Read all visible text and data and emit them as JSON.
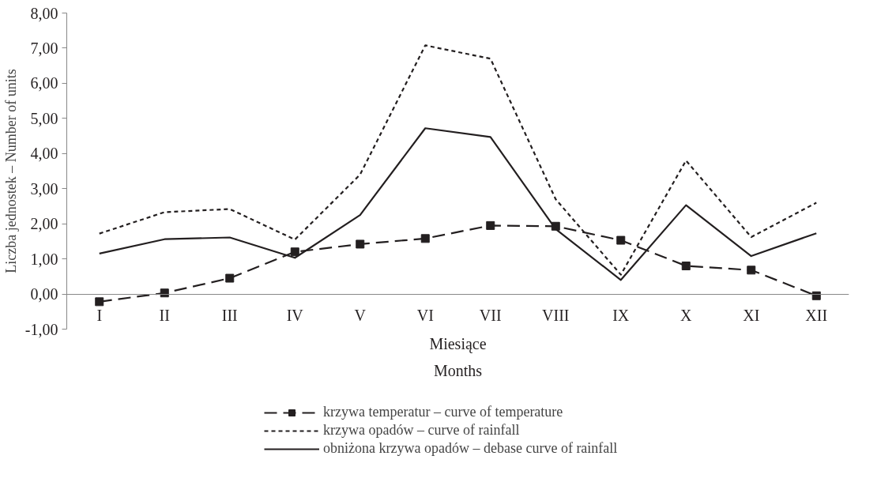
{
  "chart_data": {
    "type": "line",
    "ylabel": "Liczba jednostek – Number of units",
    "xlabel": "Miesiące\nMonths",
    "categories": [
      "I",
      "II",
      "III",
      "IV",
      "V",
      "VI",
      "VII",
      "VIII",
      "IX",
      "X",
      "XI",
      "XII"
    ],
    "ylim": [
      -1,
      8
    ],
    "yticks": [
      {
        "value": -1,
        "label": "-1,00"
      },
      {
        "value": 0,
        "label": "0,00"
      },
      {
        "value": 1,
        "label": "1,00"
      },
      {
        "value": 2,
        "label": "2,00"
      },
      {
        "value": 3,
        "label": "3,00"
      },
      {
        "value": 4,
        "label": "4,00"
      },
      {
        "value": 5,
        "label": "5,00"
      },
      {
        "value": 6,
        "label": "6,00"
      },
      {
        "value": 7,
        "label": "7,00"
      },
      {
        "value": 8,
        "label": "8,00"
      }
    ],
    "grid": false,
    "legend": "bottom",
    "series": [
      {
        "name": "krzywa temperatur – curve of temperature",
        "color": "#231f20",
        "marker": "square",
        "line_style": "longdash",
        "values": [
          -0.22,
          0.03,
          0.45,
          1.2,
          1.42,
          1.58,
          1.95,
          1.93,
          1.53,
          0.8,
          0.68,
          -0.05
        ]
      },
      {
        "name": "krzywa opadów – curve of rainfall",
        "color": "#231f20",
        "marker": "none",
        "line_style": "dashed",
        "values": [
          1.72,
          2.33,
          2.42,
          1.55,
          3.4,
          7.08,
          6.7,
          2.7,
          0.55,
          3.8,
          1.62,
          2.6
        ]
      },
      {
        "name": "obniżona krzywa opadów – debase curve of rainfall",
        "color": "#231f20",
        "marker": "none",
        "line_style": "solid",
        "values": [
          1.15,
          1.56,
          1.61,
          1.03,
          2.25,
          4.72,
          4.47,
          1.85,
          0.4,
          2.53,
          1.08,
          1.73
        ]
      }
    ]
  }
}
